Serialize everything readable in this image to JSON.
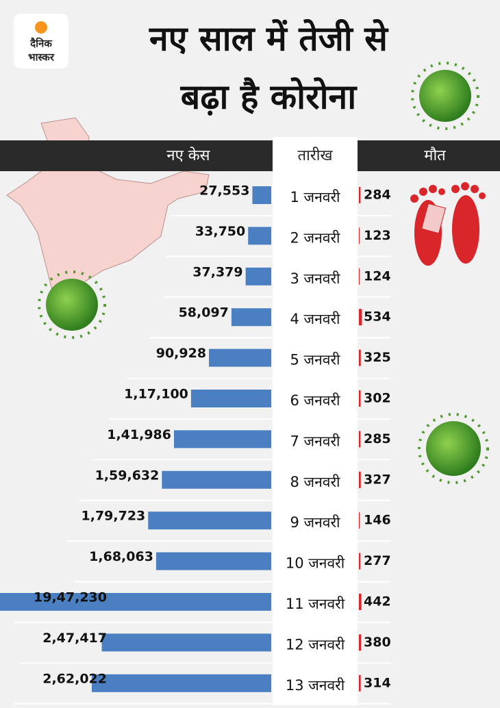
{
  "logo": [
    "दैनिक",
    "भास्कर"
  ],
  "chart_data": {
    "type": "bar",
    "title": [
      "नए साल में तेजी से",
      "बढ़ा है कोरोना"
    ],
    "column_headers": [
      "नए केस",
      "तारीख",
      "मौत"
    ],
    "categories": [
      "1 जनवरी",
      "2 जनवरी",
      "3 जनवरी",
      "4 जनवरी",
      "5 जनवरी",
      "6 जनवरी",
      "7 जनवरी",
      "8 जनवरी",
      "9 जनवरी",
      "10 जनवरी",
      "11 जनवरी",
      "12 जनवरी",
      "13 जनवरी"
    ],
    "series": [
      {
        "name": "नए केस",
        "color": "#4a7fc1",
        "values": [
          27553,
          33750,
          37379,
          58097,
          90928,
          117100,
          141986,
          159632,
          179723,
          168063,
          1947230,
          247417,
          262022
        ],
        "value_labels": [
          "27,553",
          "33,750",
          "37,379",
          "58,097",
          "90,928",
          "1,17,100",
          "1,41,986",
          "1,59,632",
          "1,79,723",
          "1,68,063",
          "19,47,230",
          "2,47,417",
          "2,62,022"
        ]
      },
      {
        "name": "मौत",
        "color": "#d9262b",
        "values": [
          284,
          123,
          124,
          534,
          325,
          302,
          285,
          327,
          146,
          277,
          442,
          380,
          314
        ]
      }
    ]
  }
}
